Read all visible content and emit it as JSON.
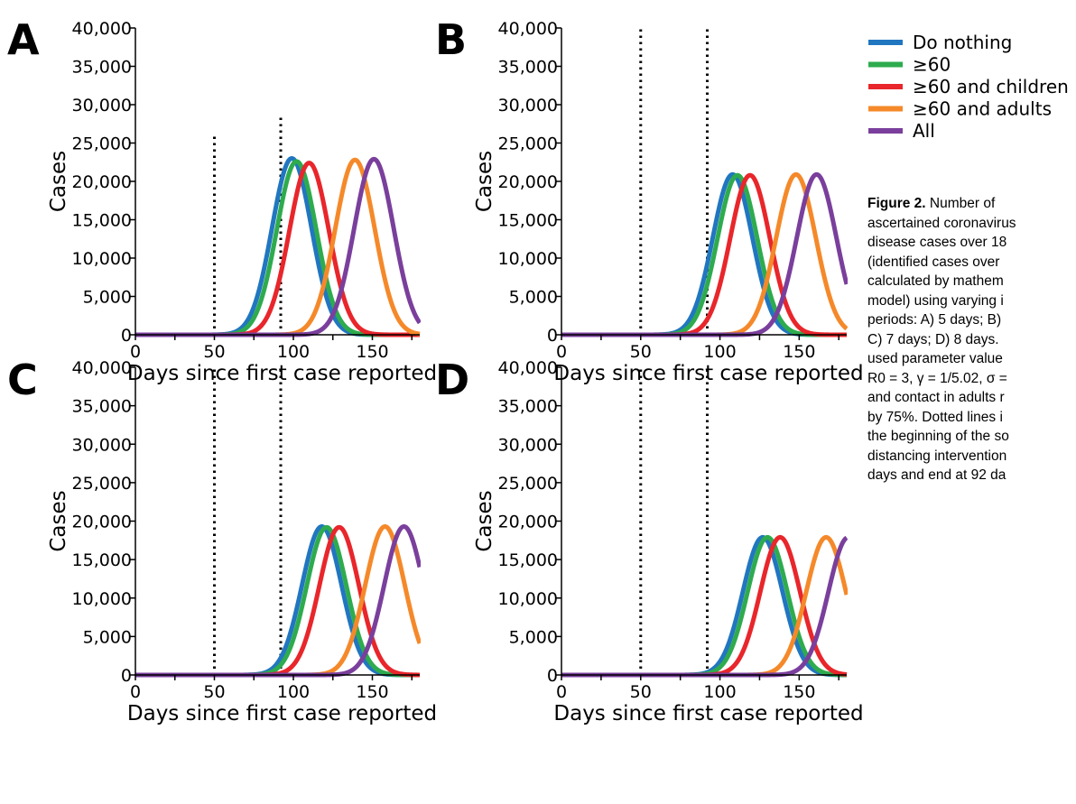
{
  "chart_data": [
    {
      "type": "line",
      "panel_label": "A",
      "xlabel": "Days since first case reported",
      "ylabel": "Cases",
      "xlim": [
        0,
        180
      ],
      "ylim": [
        0,
        40000
      ],
      "x_ticks": [
        "0",
        "50",
        "100",
        "150"
      ],
      "y_ticks": [
        "0",
        "5,000",
        "10,000",
        "15,000",
        "20,000",
        "25,000",
        "30,000",
        "35,000",
        "40,000"
      ],
      "vlines": [
        {
          "x": 50,
          "y_top": 26000
        },
        {
          "x": 92,
          "y_top": 28800
        }
      ],
      "series": [
        {
          "name": "Do nothing",
          "peak_day": 99,
          "peak_cases": 23000
        },
        {
          "name": "≥60",
          "peak_day": 102,
          "peak_cases": 22600
        },
        {
          "name": "≥60 and children",
          "peak_day": 110,
          "peak_cases": 22400
        },
        {
          "name": "≥60 and adults",
          "peak_day": 139,
          "peak_cases": 22800
        },
        {
          "name": "All",
          "peak_day": 151,
          "peak_cases": 22900
        }
      ]
    },
    {
      "type": "line",
      "panel_label": "B",
      "xlabel": "Days since first case reported",
      "ylabel": "Cases",
      "xlim": [
        0,
        180
      ],
      "ylim": [
        0,
        40000
      ],
      "x_ticks": [
        "0",
        "50",
        "100",
        "150"
      ],
      "y_ticks": [
        "0",
        "5,000",
        "10,000",
        "15,000",
        "20,000",
        "25,000",
        "30,000",
        "35,000",
        "40,000"
      ],
      "vlines": [
        {
          "x": 50,
          "y_top": 40000
        },
        {
          "x": 92,
          "y_top": 40000
        }
      ],
      "series": [
        {
          "name": "Do nothing",
          "peak_day": 108,
          "peak_cases": 20900
        },
        {
          "name": "≥60",
          "peak_day": 111,
          "peak_cases": 20800
        },
        {
          "name": "≥60 and children",
          "peak_day": 119,
          "peak_cases": 20800
        },
        {
          "name": "≥60 and adults",
          "peak_day": 148,
          "peak_cases": 20900
        },
        {
          "name": "All",
          "peak_day": 161,
          "peak_cases": 20900
        }
      ]
    },
    {
      "type": "line",
      "panel_label": "C",
      "xlabel": "Days since first case reported",
      "ylabel": "Cases",
      "xlim": [
        0,
        180
      ],
      "ylim": [
        0,
        40000
      ],
      "x_ticks": [
        "0",
        "50",
        "100",
        "150"
      ],
      "y_ticks": [
        "0",
        "5,000",
        "10,000",
        "15,000",
        "20,000",
        "25,000",
        "30,000",
        "35,000",
        "40,000"
      ],
      "vlines": [
        {
          "x": 50,
          "y_top": 40000
        },
        {
          "x": 92,
          "y_top": 40000
        }
      ],
      "series": [
        {
          "name": "Do nothing",
          "peak_day": 118,
          "peak_cases": 19300
        },
        {
          "name": "≥60",
          "peak_day": 121,
          "peak_cases": 19200
        },
        {
          "name": "≥60 and children",
          "peak_day": 129,
          "peak_cases": 19200
        },
        {
          "name": "≥60 and adults",
          "peak_day": 158,
          "peak_cases": 19300
        },
        {
          "name": "All",
          "peak_day": 170,
          "peak_cases": 19300
        }
      ]
    },
    {
      "type": "line",
      "panel_label": "D",
      "xlabel": "Days since first case reported",
      "ylabel": "Cases",
      "xlim": [
        0,
        180
      ],
      "ylim": [
        0,
        40000
      ],
      "x_ticks": [
        "0",
        "50",
        "100",
        "150"
      ],
      "y_ticks": [
        "0",
        "5,000",
        "10,000",
        "15,000",
        "20,000",
        "25,000",
        "30,000",
        "35,000",
        "40,000"
      ],
      "vlines": [
        {
          "x": 50,
          "y_top": 40000
        },
        {
          "x": 92,
          "y_top": 40000
        }
      ],
      "series": [
        {
          "name": "Do nothing",
          "peak_day": 127,
          "peak_cases": 17900
        },
        {
          "name": "≥60",
          "peak_day": 130,
          "peak_cases": 17900
        },
        {
          "name": "≥60 and children",
          "peak_day": 138,
          "peak_cases": 17900
        },
        {
          "name": "≥60 and adults",
          "peak_day": 167,
          "peak_cases": 17900
        },
        {
          "name": "All",
          "peak_day": 181,
          "peak_cases": 17900
        }
      ]
    }
  ],
  "legend": {
    "placement": "top-right",
    "items": [
      {
        "label": "Do nothing",
        "color": "#2176c0"
      },
      {
        "label": "≥60",
        "color": "#2eab4e"
      },
      {
        "label": "≥60 and children",
        "color": "#e8262b"
      },
      {
        "label": "≥60 and adults",
        "color": "#f5892a"
      },
      {
        "label": "All",
        "color": "#7a3f9c"
      }
    ]
  },
  "caption": {
    "title": "Figure 2.",
    "lines": [
      " Number of",
      "ascertained coronavirus",
      "disease cases over 18",
      "(identified cases over",
      "calculated by mathem",
      "model) using varying i",
      "periods: A) 5 days; B)",
      "C) 7 days; D) 8 days.",
      "used parameter value",
      "R0 = 3, γ = 1/5.02, σ =",
      "and contact in adults r",
      "by 75%. Dotted lines i",
      "the beginning of the so",
      "distancing intervention",
      "days and end at 92 da"
    ]
  }
}
